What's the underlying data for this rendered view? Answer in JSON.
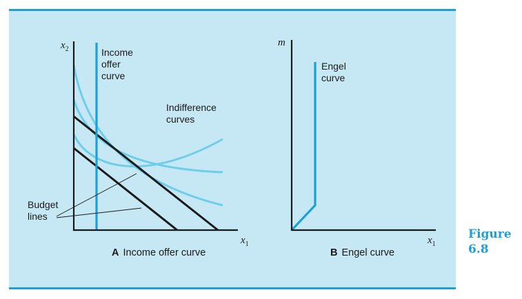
{
  "figure": {
    "word": "Figure",
    "number": "6.8",
    "accent_color": "#1ba0d7",
    "panel_color": "#c6e8f5"
  },
  "panel_a": {
    "letter": "A",
    "caption": "Income offer curve",
    "y_axis_var": "x",
    "y_axis_sub": "2",
    "x_axis_var": "x",
    "x_axis_sub": "1",
    "income_offer_label": [
      "Income",
      "offer",
      "curve"
    ],
    "indifference_label": [
      "Indifference",
      "curves"
    ],
    "budget_label": [
      "Budget",
      "lines"
    ],
    "budget_line_count": 2,
    "indifference_curve_count": 3
  },
  "panel_b": {
    "letter": "B",
    "caption": "Engel curve",
    "y_axis_var": "m",
    "x_axis_var": "x",
    "x_axis_sub": "1",
    "engel_label": [
      "Engel",
      "curve"
    ]
  }
}
